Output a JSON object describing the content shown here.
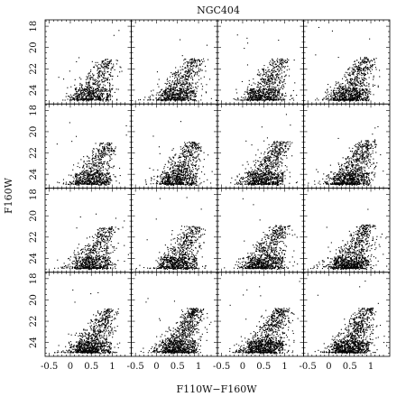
{
  "chart_data": {
    "type": "scatter",
    "title": "NGC404",
    "xlabel": "F110W−F160W",
    "ylabel": "F160W",
    "xlim": [
      -0.6,
      1.45
    ],
    "ylim": [
      25.3,
      17.4
    ],
    "y_inverted": true,
    "grid": false,
    "layout": {
      "rows": 4,
      "cols": 4
    },
    "x_ticks": [
      -0.5,
      0,
      0.5,
      1
    ],
    "x_tick_labels": [
      "-0.5",
      "0",
      "0.5",
      "1"
    ],
    "y_ticks": [
      18,
      20,
      22,
      24
    ],
    "y_tick_labels": [
      "18",
      "20",
      "22",
      "24"
    ],
    "panel_density": [
      [
        0.45,
        0.55,
        0.55,
        0.75
      ],
      [
        0.55,
        0.65,
        0.75,
        0.85
      ],
      [
        0.55,
        0.65,
        0.75,
        0.85
      ],
      [
        0.85,
        0.95,
        1.0,
        1.0
      ]
    ],
    "point_color": "#000000"
  }
}
